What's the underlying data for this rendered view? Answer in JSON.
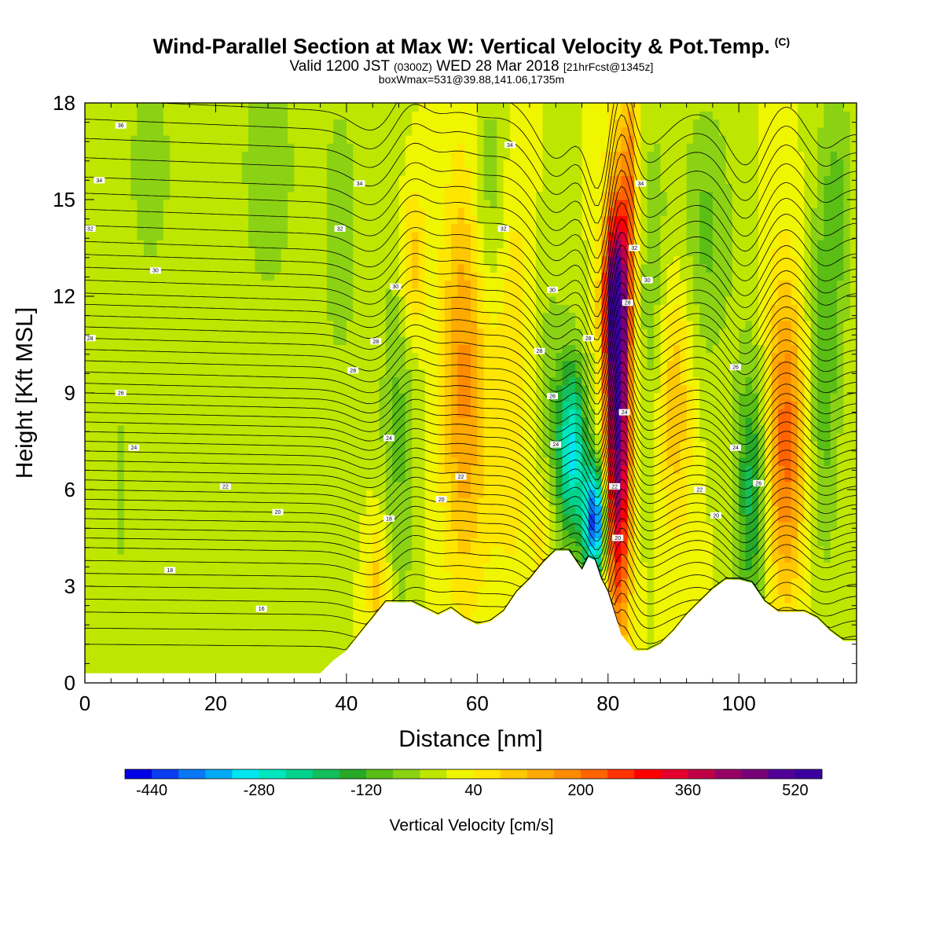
{
  "title": {
    "main": "Wind-Parallel Section at Max W: Vertical Velocity & Pot.Temp.",
    "copyright": "(C)",
    "valid_prefix": "Valid 1200 JST",
    "valid_utc": "(0300Z)",
    "valid_date": "WED 28 Mar 2018",
    "forecast": "[21hrFcst@1345z]",
    "box_info": "boxWmax=531@39.88,141.06,1735m"
  },
  "chart_data": {
    "type": "heatmap",
    "xlabel": "Distance [nm]",
    "ylabel": "Height [Kft MSL]",
    "xlim": [
      0,
      118
    ],
    "ylim": [
      0,
      18
    ],
    "x_ticks": [
      0,
      20,
      40,
      60,
      80,
      100
    ],
    "y_ticks": [
      0,
      3,
      6,
      9,
      12,
      15,
      18
    ],
    "colorbar": {
      "label": "Vertical Velocity [cm/s]",
      "min": -480,
      "max": 560,
      "step": 40,
      "tick_labels": [
        -440,
        -280,
        -120,
        40,
        200,
        360,
        520
      ],
      "colors": [
        "#0000e6",
        "#0a3cf0",
        "#0a78f5",
        "#00aaf5",
        "#00e6f0",
        "#00e6be",
        "#00d28c",
        "#14be5a",
        "#28aa28",
        "#5abe14",
        "#8cd214",
        "#bee600",
        "#f0f500",
        "#ffe600",
        "#ffc800",
        "#ffaa00",
        "#ff8c00",
        "#ff6400",
        "#ff3200",
        "#ff0000",
        "#e6002d",
        "#be0046",
        "#960064",
        "#780078",
        "#500096",
        "#3c00a0"
      ]
    },
    "background_velocity": 0,
    "velocity_features": [
      {
        "x": 81.5,
        "y": 8.5,
        "sx": 1.4,
        "sy": 4.5,
        "value": 500
      },
      {
        "x": 81.0,
        "y": 12.0,
        "sx": 1.4,
        "sy": 1.6,
        "value": 250
      },
      {
        "x": 83.5,
        "y": 15.5,
        "sx": 0.9,
        "sy": 2.5,
        "value": 160
      },
      {
        "x": 78.0,
        "y": 5.0,
        "sx": 1.2,
        "sy": 1.3,
        "value": -420
      },
      {
        "x": 74.5,
        "y": 7.2,
        "sx": 1.6,
        "sy": 2.0,
        "value": -280
      },
      {
        "x": 71.0,
        "y": 9.0,
        "sx": 2.0,
        "sy": 3.5,
        "value": -60
      },
      {
        "x": 58.0,
        "y": 9.5,
        "sx": 2.4,
        "sy": 4.5,
        "value": 170
      },
      {
        "x": 48.0,
        "y": 8.0,
        "sx": 2.0,
        "sy": 4.5,
        "value": -90
      },
      {
        "x": 50.0,
        "y": 13.0,
        "sx": 1.4,
        "sy": 1.8,
        "value": 120
      },
      {
        "x": 107.0,
        "y": 7.5,
        "sx": 2.2,
        "sy": 3.5,
        "value": 220
      },
      {
        "x": 102.0,
        "y": 6.0,
        "sx": 1.8,
        "sy": 3.0,
        "value": -180
      },
      {
        "x": 113.0,
        "y": 9.0,
        "sx": 1.8,
        "sy": 4.0,
        "value": -100
      },
      {
        "x": 90.0,
        "y": 9.0,
        "sx": 2.0,
        "sy": 3.0,
        "value": 130
      },
      {
        "x": 87.0,
        "y": 12.0,
        "sx": 2.0,
        "sy": 4.0,
        "value": -80
      },
      {
        "x": 95.0,
        "y": 14.0,
        "sx": 3.0,
        "sy": 3.0,
        "value": -90
      },
      {
        "x": 62.0,
        "y": 15.0,
        "sx": 2.0,
        "sy": 3.0,
        "value": -90
      },
      {
        "x": 65.0,
        "y": 10.0,
        "sx": 2.5,
        "sy": 5.0,
        "value": 80
      },
      {
        "x": 28.0,
        "y": 16.0,
        "sx": 3.0,
        "sy": 3.0,
        "value": -80
      },
      {
        "x": 39.0,
        "y": 14.0,
        "sx": 2.5,
        "sy": 4.0,
        "value": -60
      },
      {
        "x": 10.0,
        "y": 16.0,
        "sx": 3.0,
        "sy": 3.0,
        "value": -60
      },
      {
        "x": 5.5,
        "y": 6.0,
        "sx": 0.8,
        "sy": 1.8,
        "value": -70
      },
      {
        "x": 115.0,
        "y": 15.0,
        "sx": 2.0,
        "sy": 3.0,
        "value": -80
      },
      {
        "x": 45.0,
        "y": 3.0,
        "sx": 1.2,
        "sy": 1.5,
        "value": 110
      },
      {
        "x": 70.0,
        "y": 4.5,
        "sx": 1.5,
        "sy": 1.5,
        "value": 60
      }
    ],
    "terrain_x": [
      0,
      4,
      8,
      12,
      16,
      20,
      24,
      28,
      32,
      36,
      38,
      40,
      42,
      44,
      46,
      48,
      50,
      52,
      54,
      56,
      58,
      60,
      62,
      64,
      66,
      68,
      70,
      72,
      74,
      75,
      76,
      77,
      78,
      79,
      80,
      82,
      84,
      86,
      88,
      90,
      92,
      94,
      96,
      98,
      100,
      102,
      104,
      106,
      108,
      110,
      112,
      114,
      116,
      118
    ],
    "terrain_y": [
      0.3,
      0.3,
      0.3,
      0.3,
      0.3,
      0.3,
      0.3,
      0.3,
      0.3,
      0.3,
      0.7,
      1.0,
      1.5,
      2.0,
      2.5,
      2.5,
      2.5,
      2.3,
      2.1,
      2.3,
      2.0,
      1.8,
      1.9,
      2.2,
      2.8,
      3.2,
      3.7,
      4.1,
      4.1,
      3.8,
      3.5,
      3.9,
      3.8,
      3.2,
      2.8,
      1.5,
      1.0,
      1.0,
      1.2,
      1.6,
      2.1,
      2.5,
      2.9,
      3.2,
      3.2,
      3.1,
      2.5,
      2.2,
      2.2,
      2.2,
      2.0,
      1.6,
      1.3,
      1.3
    ],
    "theta_contours": [
      {
        "value": 14,
        "ref_height": 1.2
      },
      {
        "value": 14.5,
        "ref_height": 1.7
      },
      {
        "value": 15,
        "ref_height": 2.2
      },
      {
        "value": 15.5,
        "ref_height": 2.6
      },
      {
        "value": 16,
        "ref_height": 3.0
      },
      {
        "value": 16.5,
        "ref_height": 3.4
      },
      {
        "value": 17,
        "ref_height": 3.8
      },
      {
        "value": 17.5,
        "ref_height": 4.2
      },
      {
        "value": 18,
        "ref_height": 4.5
      },
      {
        "value": 18.5,
        "ref_height": 4.8
      },
      {
        "value": 19,
        "ref_height": 5.1
      },
      {
        "value": 19.5,
        "ref_height": 5.4
      },
      {
        "value": 20,
        "ref_height": 5.7
      },
      {
        "value": 20.5,
        "ref_height": 6.0
      },
      {
        "value": 21,
        "ref_height": 6.3
      },
      {
        "value": 21.5,
        "ref_height": 6.6
      },
      {
        "value": 22,
        "ref_height": 6.9
      },
      {
        "value": 22.5,
        "ref_height": 7.2
      },
      {
        "value": 23,
        "ref_height": 7.5
      },
      {
        "value": 23.5,
        "ref_height": 7.8
      },
      {
        "value": 24,
        "ref_height": 8.1
      },
      {
        "value": 24.5,
        "ref_height": 8.4
      },
      {
        "value": 25,
        "ref_height": 8.7
      },
      {
        "value": 25.5,
        "ref_height": 9.0
      },
      {
        "value": 26,
        "ref_height": 9.3
      },
      {
        "value": 26.5,
        "ref_height": 9.65
      },
      {
        "value": 27,
        "ref_height": 10.0
      },
      {
        "value": 27.5,
        "ref_height": 10.35
      },
      {
        "value": 28,
        "ref_height": 10.7
      },
      {
        "value": 28.5,
        "ref_height": 11.05
      },
      {
        "value": 29,
        "ref_height": 11.4
      },
      {
        "value": 29.5,
        "ref_height": 11.75
      },
      {
        "value": 30,
        "ref_height": 12.1
      },
      {
        "value": 30.5,
        "ref_height": 12.5
      },
      {
        "value": 31,
        "ref_height": 12.9
      },
      {
        "value": 31.5,
        "ref_height": 13.3
      },
      {
        "value": 32,
        "ref_height": 13.7
      },
      {
        "value": 32.5,
        "ref_height": 14.2
      },
      {
        "value": 33,
        "ref_height": 14.7
      },
      {
        "value": 33.5,
        "ref_height": 15.2
      },
      {
        "value": 34,
        "ref_height": 15.7
      },
      {
        "value": 34.5,
        "ref_height": 16.3
      },
      {
        "value": 35,
        "ref_height": 16.9
      },
      {
        "value": 35.5,
        "ref_height": 17.5
      },
      {
        "value": 36,
        "ref_height": 18.1
      }
    ],
    "contour_labels": [
      {
        "x": 5.5,
        "y": 17.3,
        "text": "36"
      },
      {
        "x": 2.2,
        "y": 15.6,
        "text": "34"
      },
      {
        "x": 0.8,
        "y": 14.1,
        "text": "32"
      },
      {
        "x": 10.8,
        "y": 12.8,
        "text": "30"
      },
      {
        "x": 0.8,
        "y": 10.7,
        "text": "28"
      },
      {
        "x": 5.5,
        "y": 9.0,
        "text": "26"
      },
      {
        "x": 7.5,
        "y": 7.3,
        "text": "24"
      },
      {
        "x": 21.5,
        "y": 6.1,
        "text": "22"
      },
      {
        "x": 29.5,
        "y": 5.3,
        "text": "20"
      },
      {
        "x": 13.0,
        "y": 3.5,
        "text": "18"
      },
      {
        "x": 27.0,
        "y": 2.3,
        "text": "16"
      },
      {
        "x": 65.0,
        "y": 16.7,
        "text": "34"
      },
      {
        "x": 42.0,
        "y": 15.5,
        "text": "34"
      },
      {
        "x": 39.0,
        "y": 14.1,
        "text": "32"
      },
      {
        "x": 64.0,
        "y": 14.1,
        "text": "32"
      },
      {
        "x": 47.5,
        "y": 12.3,
        "text": "30"
      },
      {
        "x": 44.5,
        "y": 10.6,
        "text": "28"
      },
      {
        "x": 41.0,
        "y": 9.7,
        "text": "28"
      },
      {
        "x": 46.5,
        "y": 7.6,
        "text": "24"
      },
      {
        "x": 57.5,
        "y": 6.4,
        "text": "22"
      },
      {
        "x": 54.5,
        "y": 5.7,
        "text": "20"
      },
      {
        "x": 46.5,
        "y": 5.1,
        "text": "18"
      },
      {
        "x": 71.5,
        "y": 12.2,
        "text": "30"
      },
      {
        "x": 69.5,
        "y": 10.3,
        "text": "28"
      },
      {
        "x": 71.5,
        "y": 8.9,
        "text": "26"
      },
      {
        "x": 72.0,
        "y": 7.4,
        "text": "24"
      },
      {
        "x": 77.0,
        "y": 10.7,
        "text": "28"
      },
      {
        "x": 82.5,
        "y": 8.4,
        "text": "24"
      },
      {
        "x": 81.0,
        "y": 6.1,
        "text": "22"
      },
      {
        "x": 81.5,
        "y": 4.5,
        "text": "20"
      },
      {
        "x": 85.0,
        "y": 15.5,
        "text": "34"
      },
      {
        "x": 84.0,
        "y": 13.5,
        "text": "32"
      },
      {
        "x": 86.0,
        "y": 12.5,
        "text": "30"
      },
      {
        "x": 83.0,
        "y": 11.8,
        "text": "28"
      },
      {
        "x": 99.5,
        "y": 9.8,
        "text": "26"
      },
      {
        "x": 99.5,
        "y": 7.3,
        "text": "24"
      },
      {
        "x": 103.0,
        "y": 6.2,
        "text": "26"
      },
      {
        "x": 94.0,
        "y": 6.0,
        "text": "22"
      },
      {
        "x": 96.5,
        "y": 5.2,
        "text": "20"
      }
    ]
  }
}
